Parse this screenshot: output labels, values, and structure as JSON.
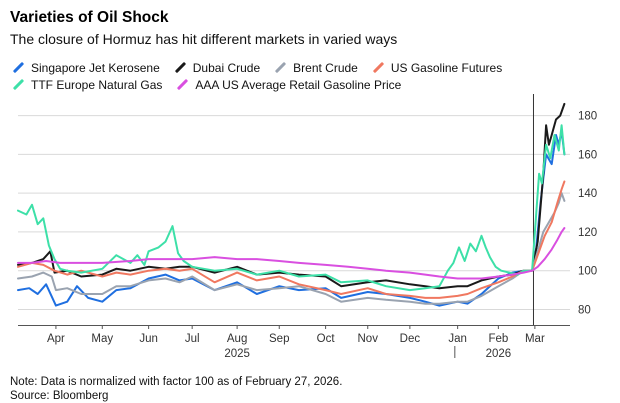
{
  "chart_data": {
    "type": "line",
    "title": "Varieties of Oil Shock",
    "subtitle": "The closure of Hormuz has hit different markets in varied ways",
    "ylim": [
      72,
      187
    ],
    "yticks": [
      80,
      100,
      120,
      140,
      160,
      180
    ],
    "ytick_labels": [
      "80",
      "100",
      "120",
      "140",
      "160",
      "180"
    ],
    "xlim": [
      0,
      393
    ],
    "xticks": [
      {
        "x": 27,
        "label": "Apr"
      },
      {
        "x": 60,
        "label": "May"
      },
      {
        "x": 93,
        "label": "Jun"
      },
      {
        "x": 124,
        "label": "Jul"
      },
      {
        "x": 156,
        "label": "Aug"
      },
      {
        "x": 186,
        "label": "Sep"
      },
      {
        "x": 219,
        "label": "Oct"
      },
      {
        "x": 249,
        "label": "Nov"
      },
      {
        "x": 279,
        "label": "Dec"
      },
      {
        "x": 313,
        "label": "Jan"
      },
      {
        "x": 342,
        "label": "Feb"
      },
      {
        "x": 368,
        "label": "Mar"
      }
    ],
    "year_labels": [
      {
        "x": 156,
        "label": "2025"
      },
      {
        "x": 342,
        "label": "2026"
      }
    ],
    "year_divider_x": 311,
    "normalization_x": 367,
    "x_unit": "days since mid-March 2025",
    "series": [
      {
        "name": "Singapore Jet Kerosene",
        "color": "#1f6fe0",
        "points": [
          [
            0,
            90
          ],
          [
            8,
            91
          ],
          [
            14,
            88
          ],
          [
            20,
            93
          ],
          [
            27,
            82
          ],
          [
            35,
            84
          ],
          [
            42,
            92
          ],
          [
            50,
            86
          ],
          [
            60,
            84
          ],
          [
            70,
            90
          ],
          [
            80,
            91
          ],
          [
            93,
            96
          ],
          [
            105,
            98
          ],
          [
            115,
            95
          ],
          [
            124,
            96
          ],
          [
            140,
            90
          ],
          [
            156,
            94
          ],
          [
            170,
            88
          ],
          [
            186,
            92
          ],
          [
            200,
            90
          ],
          [
            219,
            91
          ],
          [
            230,
            86
          ],
          [
            249,
            89
          ],
          [
            262,
            88
          ],
          [
            279,
            86
          ],
          [
            290,
            84
          ],
          [
            300,
            82
          ],
          [
            313,
            84
          ],
          [
            320,
            83
          ],
          [
            330,
            88
          ],
          [
            342,
            96
          ],
          [
            352,
            99
          ],
          [
            360,
            100
          ],
          [
            366,
            100
          ],
          [
            369,
            112
          ],
          [
            372,
            135
          ],
          [
            376,
            160
          ],
          [
            380,
            155
          ],
          [
            383,
            170
          ],
          [
            385,
            165
          ],
          [
            387,
            172
          ],
          [
            389,
            160
          ]
        ]
      },
      {
        "name": "Dubai Crude",
        "color": "#1a1a1a",
        "points": [
          [
            0,
            103
          ],
          [
            10,
            104
          ],
          [
            18,
            106
          ],
          [
            23,
            110
          ],
          [
            26,
            99
          ],
          [
            35,
            100
          ],
          [
            45,
            97
          ],
          [
            60,
            98
          ],
          [
            70,
            101
          ],
          [
            80,
            100
          ],
          [
            93,
            102
          ],
          [
            105,
            101
          ],
          [
            115,
            102
          ],
          [
            124,
            102
          ],
          [
            140,
            99
          ],
          [
            156,
            102
          ],
          [
            170,
            98
          ],
          [
            186,
            99
          ],
          [
            200,
            98
          ],
          [
            219,
            97
          ],
          [
            230,
            92
          ],
          [
            249,
            94
          ],
          [
            262,
            95
          ],
          [
            279,
            93
          ],
          [
            290,
            92
          ],
          [
            300,
            91
          ],
          [
            313,
            92
          ],
          [
            320,
            92
          ],
          [
            330,
            95
          ],
          [
            342,
            97
          ],
          [
            352,
            98
          ],
          [
            360,
            100
          ],
          [
            366,
            100
          ],
          [
            370,
            115
          ],
          [
            374,
            150
          ],
          [
            376,
            175
          ],
          [
            378,
            165
          ],
          [
            380,
            170
          ],
          [
            383,
            178
          ],
          [
            386,
            180
          ],
          [
            389,
            186
          ]
        ]
      },
      {
        "name": "Brent Crude",
        "color": "#9aa3b0",
        "points": [
          [
            0,
            96
          ],
          [
            10,
            97
          ],
          [
            18,
            99
          ],
          [
            24,
            97
          ],
          [
            27,
            90
          ],
          [
            35,
            91
          ],
          [
            45,
            88
          ],
          [
            60,
            88
          ],
          [
            70,
            92
          ],
          [
            80,
            92
          ],
          [
            93,
            95
          ],
          [
            105,
            96
          ],
          [
            115,
            94
          ],
          [
            124,
            97
          ],
          [
            140,
            90
          ],
          [
            156,
            93
          ],
          [
            170,
            90
          ],
          [
            186,
            91
          ],
          [
            200,
            92
          ],
          [
            219,
            88
          ],
          [
            230,
            84
          ],
          [
            249,
            86
          ],
          [
            262,
            85
          ],
          [
            279,
            84
          ],
          [
            290,
            83
          ],
          [
            300,
            83
          ],
          [
            313,
            84
          ],
          [
            320,
            84
          ],
          [
            330,
            87
          ],
          [
            342,
            92
          ],
          [
            352,
            96
          ],
          [
            360,
            100
          ],
          [
            366,
            100
          ],
          [
            370,
            110
          ],
          [
            374,
            120
          ],
          [
            378,
            125
          ],
          [
            382,
            130
          ],
          [
            385,
            135
          ],
          [
            387,
            140
          ],
          [
            389,
            136
          ]
        ]
      },
      {
        "name": "US Gasoline Futures",
        "color": "#f07860",
        "points": [
          [
            0,
            102
          ],
          [
            10,
            104
          ],
          [
            18,
            103
          ],
          [
            26,
            100
          ],
          [
            35,
            98
          ],
          [
            45,
            100
          ],
          [
            60,
            97
          ],
          [
            70,
            99
          ],
          [
            80,
            98
          ],
          [
            93,
            100
          ],
          [
            105,
            101
          ],
          [
            115,
            100
          ],
          [
            124,
            101
          ],
          [
            140,
            94
          ],
          [
            156,
            99
          ],
          [
            170,
            95
          ],
          [
            186,
            97
          ],
          [
            200,
            93
          ],
          [
            219,
            90
          ],
          [
            230,
            88
          ],
          [
            249,
            91
          ],
          [
            262,
            88
          ],
          [
            279,
            87
          ],
          [
            290,
            86
          ],
          [
            300,
            86
          ],
          [
            313,
            87
          ],
          [
            320,
            88
          ],
          [
            330,
            91
          ],
          [
            342,
            94
          ],
          [
            352,
            97
          ],
          [
            360,
            100
          ],
          [
            366,
            100
          ],
          [
            370,
            108
          ],
          [
            375,
            118
          ],
          [
            380,
            125
          ],
          [
            384,
            135
          ],
          [
            387,
            142
          ],
          [
            389,
            146
          ]
        ]
      },
      {
        "name": "TTF Europe Natural Gas",
        "color": "#3de0a8",
        "points": [
          [
            0,
            131
          ],
          [
            6,
            129
          ],
          [
            10,
            134
          ],
          [
            14,
            124
          ],
          [
            18,
            127
          ],
          [
            22,
            113
          ],
          [
            26,
            106
          ],
          [
            30,
            101
          ],
          [
            35,
            100
          ],
          [
            45,
            99
          ],
          [
            60,
            101
          ],
          [
            70,
            108
          ],
          [
            80,
            104
          ],
          [
            85,
            108
          ],
          [
            90,
            103
          ],
          [
            93,
            110
          ],
          [
            100,
            112
          ],
          [
            105,
            115
          ],
          [
            110,
            123
          ],
          [
            114,
            109
          ],
          [
            118,
            105
          ],
          [
            124,
            102
          ],
          [
            140,
            100
          ],
          [
            156,
            101
          ],
          [
            170,
            98
          ],
          [
            186,
            100
          ],
          [
            200,
            97
          ],
          [
            219,
            98
          ],
          [
            230,
            94
          ],
          [
            249,
            95
          ],
          [
            262,
            92
          ],
          [
            279,
            90
          ],
          [
            290,
            91
          ],
          [
            300,
            92
          ],
          [
            306,
            100
          ],
          [
            310,
            104
          ],
          [
            314,
            112
          ],
          [
            318,
            105
          ],
          [
            322,
            114
          ],
          [
            326,
            110
          ],
          [
            330,
            118
          ],
          [
            333,
            112
          ],
          [
            336,
            107
          ],
          [
            340,
            102
          ],
          [
            344,
            100
          ],
          [
            350,
            99
          ],
          [
            356,
            98
          ],
          [
            360,
            100
          ],
          [
            366,
            100
          ],
          [
            369,
            130
          ],
          [
            371,
            150
          ],
          [
            373,
            145
          ],
          [
            376,
            165
          ],
          [
            379,
            158
          ],
          [
            382,
            170
          ],
          [
            385,
            162
          ],
          [
            387,
            175
          ],
          [
            389,
            160
          ]
        ]
      },
      {
        "name": "AAA US Average Retail Gasoline Price",
        "color": "#d94fe0",
        "points": [
          [
            0,
            104
          ],
          [
            10,
            104
          ],
          [
            20,
            105
          ],
          [
            30,
            104
          ],
          [
            45,
            104
          ],
          [
            60,
            104
          ],
          [
            80,
            105
          ],
          [
            93,
            106
          ],
          [
            105,
            106
          ],
          [
            124,
            106
          ],
          [
            140,
            107
          ],
          [
            156,
            106
          ],
          [
            170,
            106
          ],
          [
            186,
            105
          ],
          [
            200,
            104
          ],
          [
            219,
            103
          ],
          [
            235,
            102
          ],
          [
            249,
            101
          ],
          [
            262,
            100
          ],
          [
            279,
            99
          ],
          [
            290,
            98
          ],
          [
            300,
            97
          ],
          [
            313,
            96
          ],
          [
            320,
            96
          ],
          [
            330,
            96
          ],
          [
            342,
            97
          ],
          [
            352,
            98
          ],
          [
            360,
            99
          ],
          [
            366,
            100
          ],
          [
            370,
            102
          ],
          [
            375,
            106
          ],
          [
            380,
            111
          ],
          [
            384,
            116
          ],
          [
            387,
            120
          ],
          [
            389,
            122
          ]
        ]
      }
    ]
  },
  "footer": {
    "note": "Note: Data is normalized with factor 100 as of February 27, 2026.",
    "source": "Source: Bloomberg"
  }
}
